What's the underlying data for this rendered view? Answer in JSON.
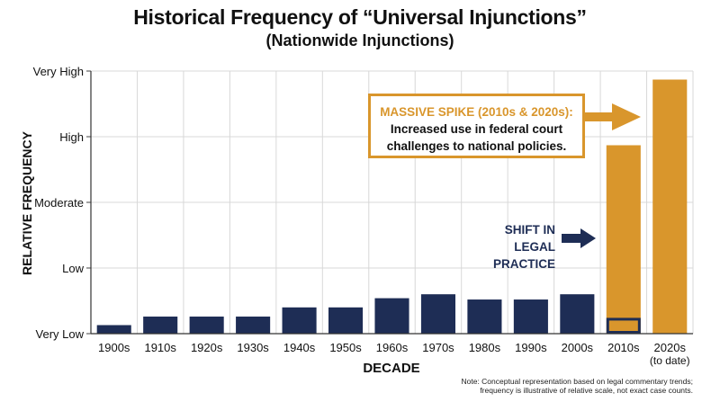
{
  "header": {
    "title": "Historical Frequency of “Universal Injunctions”",
    "subtitle": "(Nationwide Injunctions)"
  },
  "callout": {
    "heading": "MASSIVE SPIKE (2010s & 2020s):",
    "body_line1": "Increased use in federal court",
    "body_line2": "challenges to national policies."
  },
  "shift_label": {
    "line1": "SHIFT IN",
    "line2": "LEGAL PRACTICE"
  },
  "note": {
    "line1": "Note: Conceptual representation based on legal commentary trends;",
    "line2": "frequency is illustrative of relative scale, not exact case counts."
  },
  "colors": {
    "navy": "#1e2d55",
    "orange": "#d9962c",
    "grid": "#d8d8d8"
  },
  "chart_data": {
    "type": "bar",
    "xlabel": "DECADE",
    "ylabel": "RELATIVE FREQUENCY",
    "ylim": [
      0,
      4
    ],
    "y_ticks": [
      {
        "value": 0,
        "label": "Very Low"
      },
      {
        "value": 1,
        "label": "Low"
      },
      {
        "value": 2,
        "label": "Moderate"
      },
      {
        "value": 3,
        "label": "High"
      },
      {
        "value": 4,
        "label": "Very High"
      }
    ],
    "grid": true,
    "categories": [
      "1900s",
      "1910s",
      "1920s",
      "1930s",
      "1940s",
      "1950s",
      "1960s",
      "1970s",
      "1980s",
      "1990s",
      "2000s",
      "2010s",
      "2020s"
    ],
    "category_sublabels": [
      "",
      "",
      "",
      "",
      "",
      "",
      "",
      "",
      "",
      "",
      "",
      "",
      "(to date)"
    ],
    "values": [
      0.13,
      0.26,
      0.26,
      0.26,
      0.4,
      0.4,
      0.54,
      0.6,
      0.52,
      0.52,
      0.6,
      2.87,
      3.87
    ],
    "bar_colors": [
      "navy",
      "navy",
      "navy",
      "navy",
      "navy",
      "navy",
      "navy",
      "navy",
      "navy",
      "navy",
      "navy",
      "orange",
      "orange"
    ],
    "baseline_marker": {
      "category": "2010s",
      "value": 0.22
    }
  }
}
